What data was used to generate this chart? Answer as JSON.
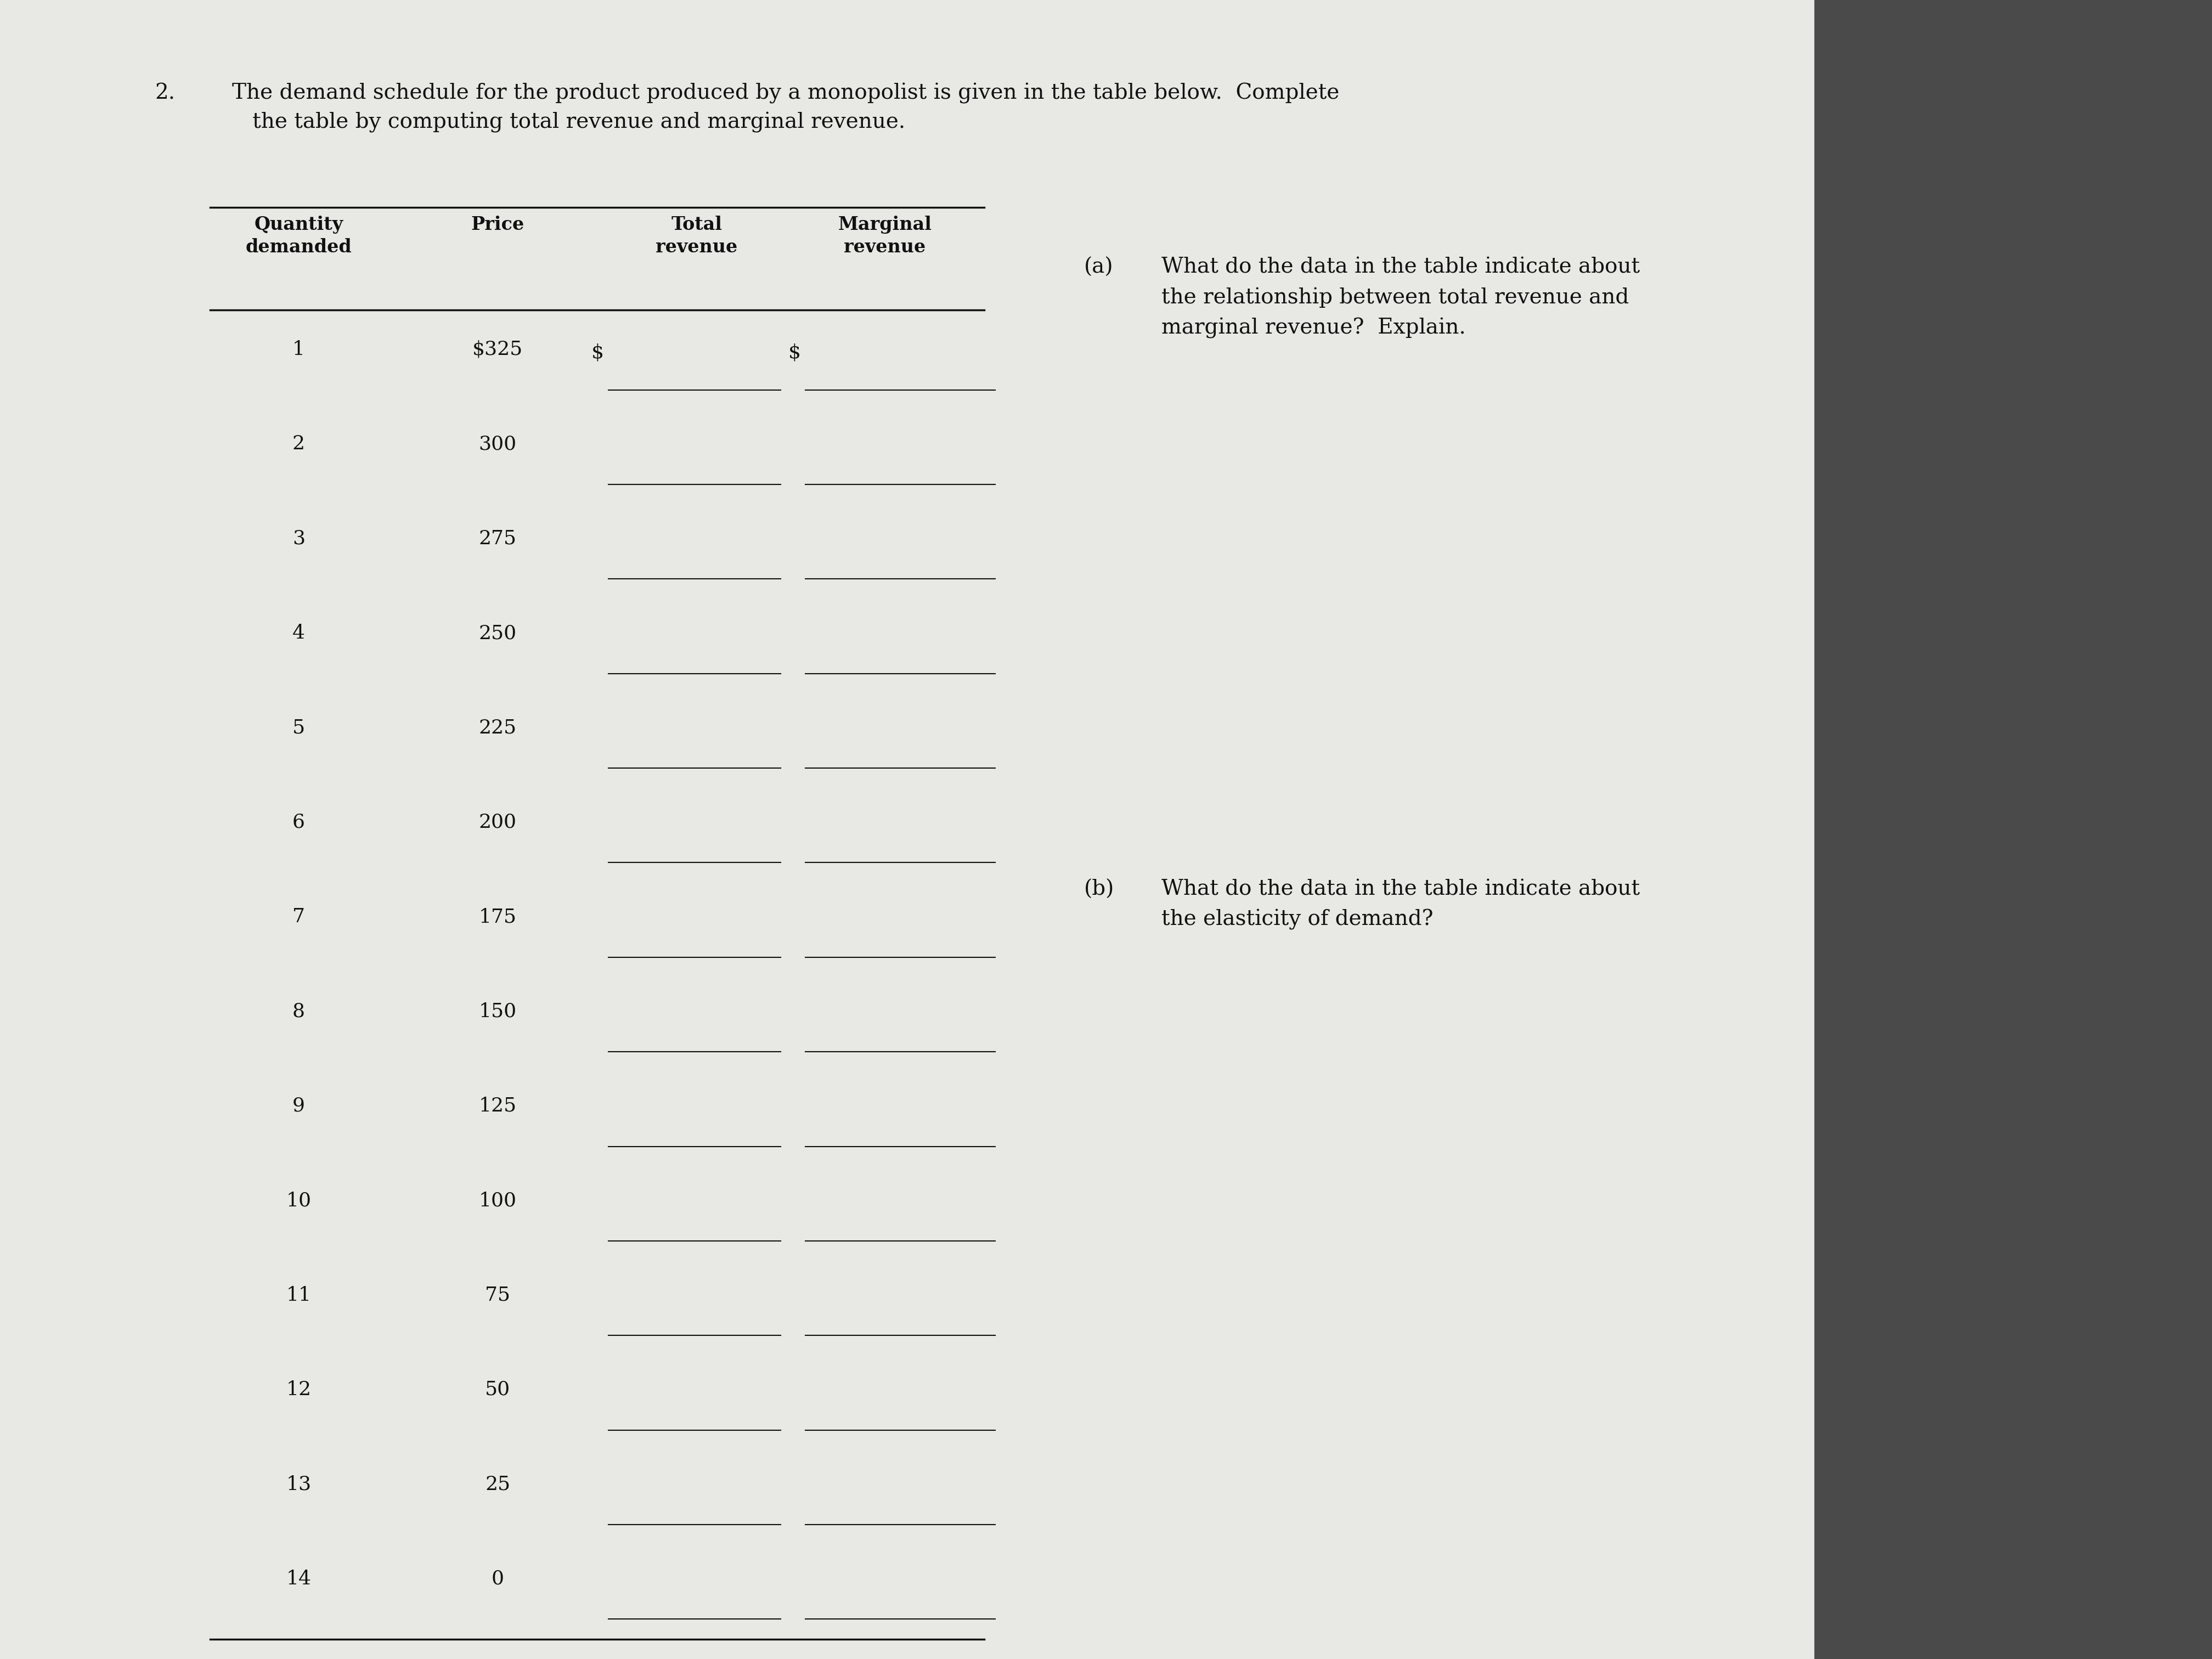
{
  "title_number": "2.",
  "title_text": "The demand schedule for the product produced by a monopolist is given in the table below.  Complete\n   the table by computing total revenue and marginal revenue.",
  "quantities": [
    1,
    2,
    3,
    4,
    5,
    6,
    7,
    8,
    9,
    10,
    11,
    12,
    13,
    14
  ],
  "prices": [
    "$325",
    "300",
    "275",
    "250",
    "225",
    "200",
    "175",
    "150",
    "125",
    "100",
    "75",
    "50",
    "25",
    "0"
  ],
  "col_header_qty": "Quantity\ndemanded",
  "col_header_price": "Price",
  "col_header_total": "Total\nrevenue",
  "col_header_marginal": "Marginal\nrevenue",
  "question_a_label": "(a)",
  "question_a_text": "What do the data in the table indicate about\nthe relationship between total revenue and\nmarginal revenue?  Explain.",
  "question_b_label": "(b)",
  "question_b_text": "What do the data in the table indicate about\nthe elasticity of demand?",
  "bg_color": "#d8d8d8",
  "paper_color": "#e8e8e4",
  "dark_panel_color": "#4a4a4a",
  "text_color": "#111111",
  "line_color": "#111111",
  "title_fontsize": 28,
  "header_fontsize": 24,
  "data_fontsize": 26,
  "question_fontsize": 28,
  "bold_header": true
}
